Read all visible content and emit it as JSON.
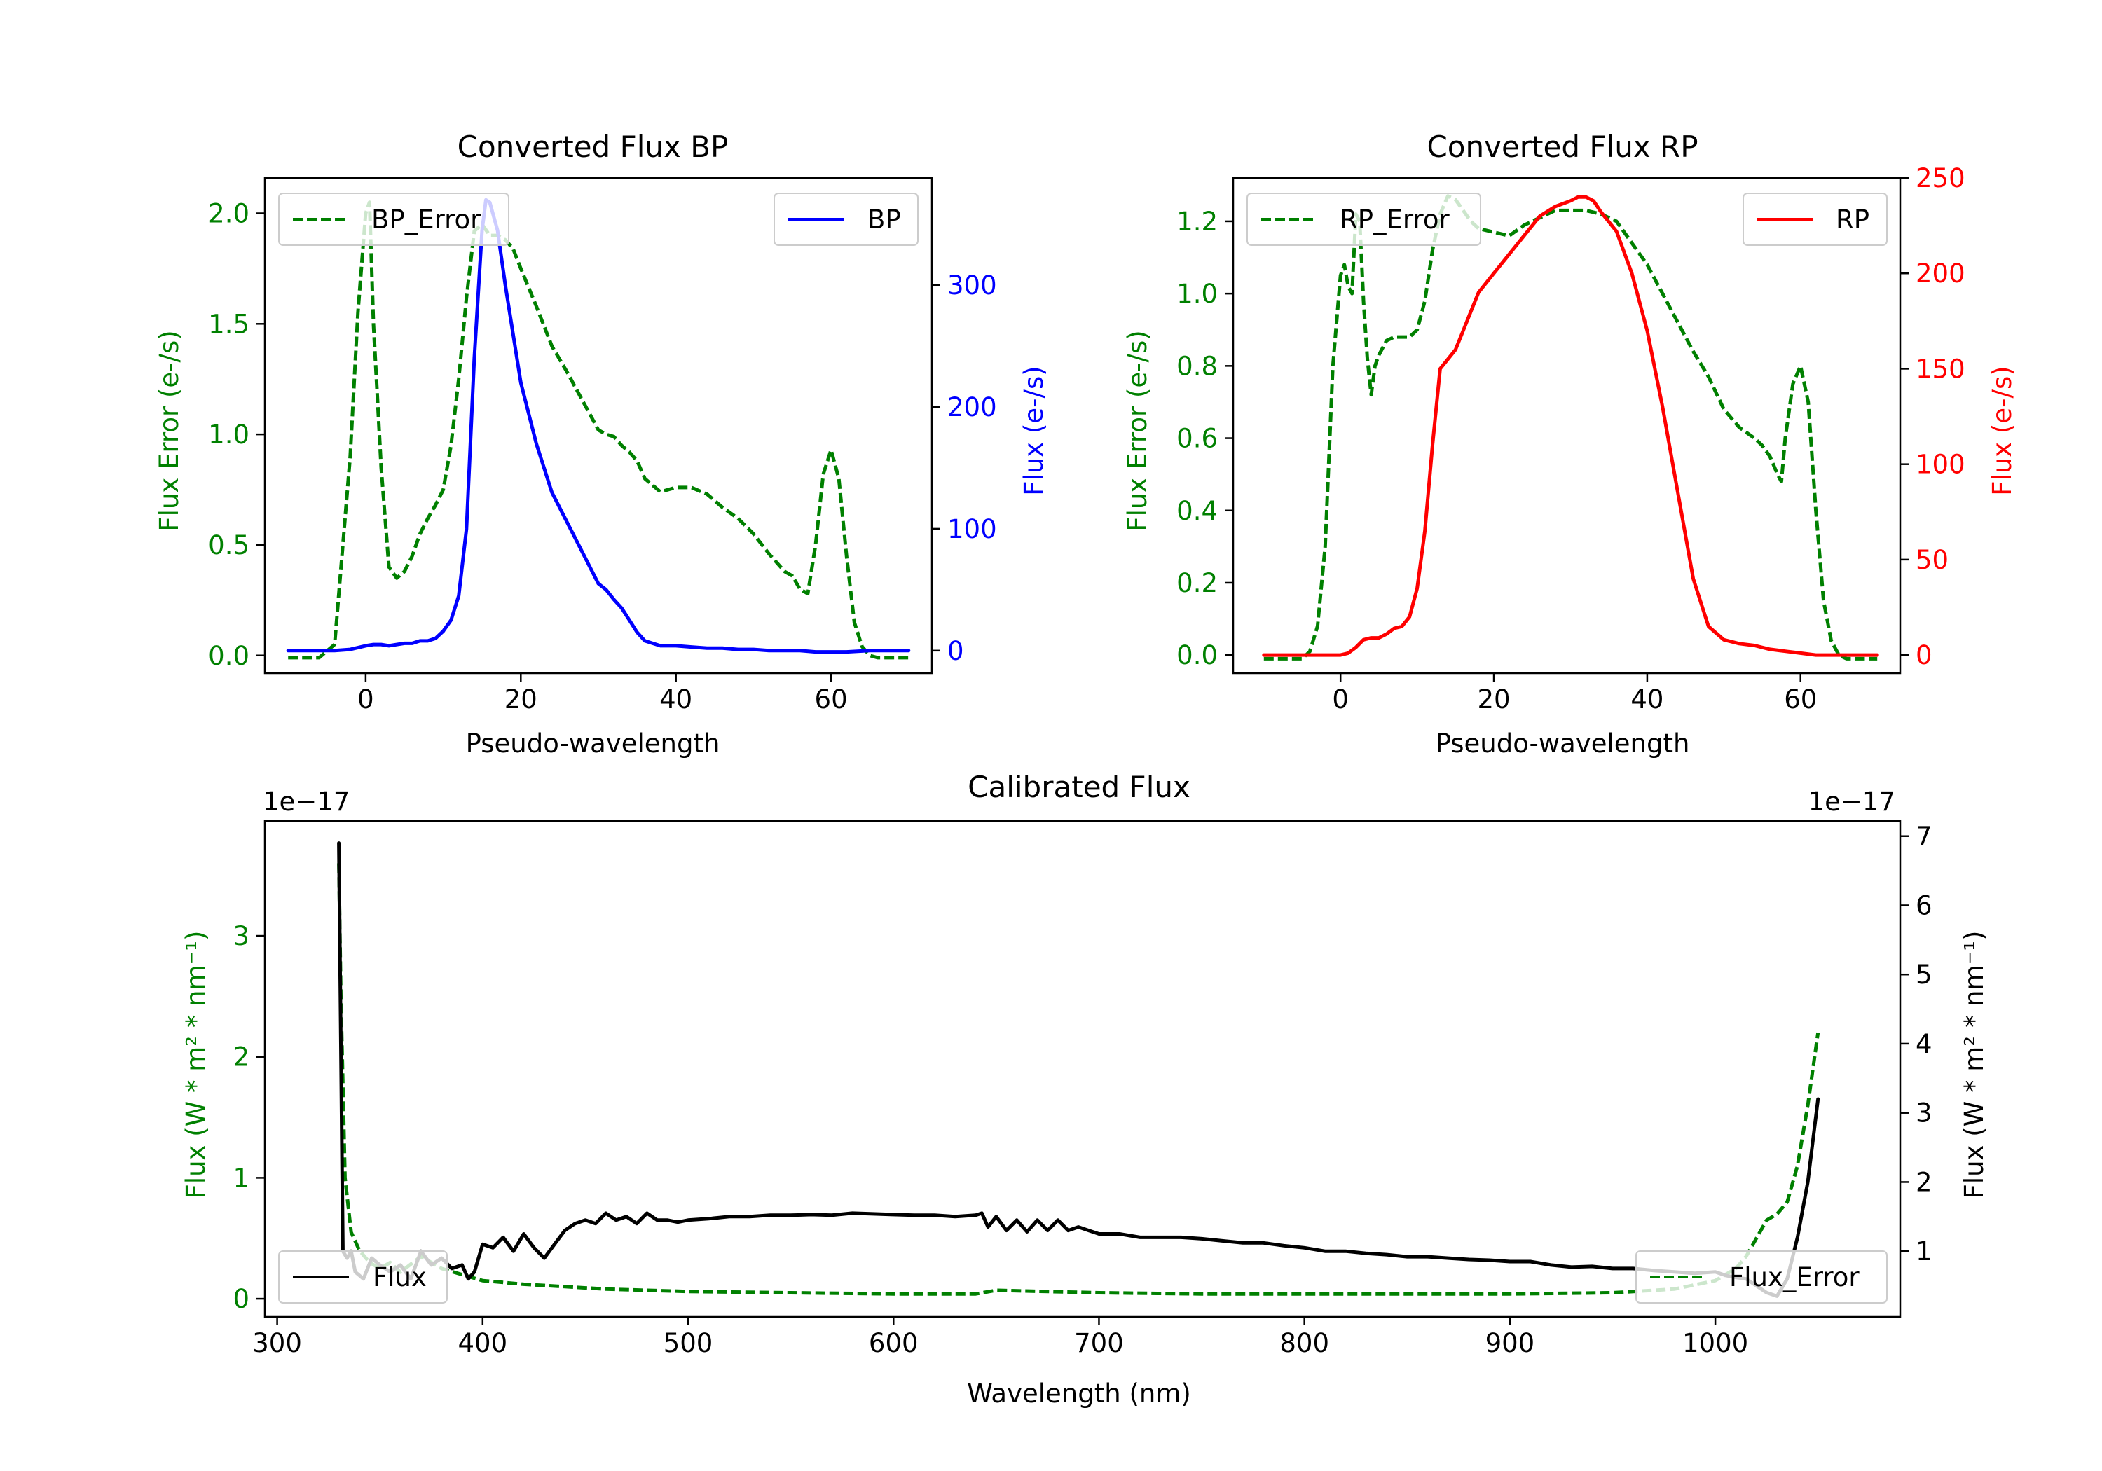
{
  "colors": {
    "bp": "#0000ff",
    "rp": "#ff0000",
    "error": "#008000",
    "flux": "#000000",
    "axis": "#000000",
    "legend_border": "#cccccc"
  },
  "chart_data": [
    {
      "id": "bp",
      "type": "line",
      "title": "Converted Flux BP",
      "xlabel": "Pseudo-wavelength",
      "ylabel_left": "Flux Error (e-/s)",
      "ylabel_right": "Flux (e-/s)",
      "xlim": [
        -13,
        73
      ],
      "ylim_left": [
        -0.08,
        2.16
      ],
      "ylim_right": [
        -18.5,
        388
      ],
      "xticks": [
        0,
        20,
        40,
        60
      ],
      "yticks_left": [
        0.0,
        0.5,
        1.0,
        1.5,
        2.0
      ],
      "yticks_right": [
        0,
        100,
        200,
        300
      ],
      "legend_left": {
        "label": "BP_Error",
        "position": "upper left"
      },
      "legend_right": {
        "label": "BP",
        "position": "upper right"
      },
      "series": [
        {
          "name": "BP_Error",
          "axis": "left",
          "style": "dashed",
          "color_key": "error",
          "x": [
            -10,
            -6,
            -4,
            -2,
            -1,
            0,
            0.5,
            1,
            2,
            3,
            4,
            5,
            6,
            7,
            8,
            9,
            10,
            11,
            12,
            13,
            14,
            15,
            16,
            17,
            18,
            19,
            20,
            22,
            24,
            26,
            28,
            30,
            31,
            32,
            33,
            34,
            35,
            36,
            37,
            38,
            39,
            40,
            42,
            44,
            46,
            48,
            50,
            52,
            54,
            55,
            56,
            57,
            58,
            59,
            60,
            61,
            62,
            63,
            64,
            65,
            66,
            70
          ],
          "y": [
            -0.01,
            -0.01,
            0.05,
            0.9,
            1.55,
            2.0,
            2.05,
            1.5,
            0.85,
            0.4,
            0.35,
            0.38,
            0.45,
            0.55,
            0.62,
            0.68,
            0.75,
            0.95,
            1.25,
            1.62,
            1.92,
            1.95,
            1.9,
            1.9,
            1.88,
            1.84,
            1.75,
            1.58,
            1.4,
            1.28,
            1.15,
            1.02,
            1.0,
            0.99,
            0.95,
            0.92,
            0.88,
            0.8,
            0.77,
            0.74,
            0.75,
            0.76,
            0.76,
            0.73,
            0.67,
            0.62,
            0.55,
            0.46,
            0.38,
            0.36,
            0.3,
            0.28,
            0.5,
            0.82,
            0.93,
            0.8,
            0.45,
            0.15,
            0.04,
            0.0,
            -0.01,
            -0.01
          ]
        },
        {
          "name": "BP",
          "axis": "right",
          "style": "solid",
          "color_key": "bp",
          "x": [
            -10,
            -4,
            -2,
            0,
            1,
            2,
            3,
            4,
            5,
            6,
            7,
            8,
            9,
            10,
            11,
            12,
            13,
            14,
            15,
            15.5,
            16,
            17,
            18,
            20,
            22,
            24,
            26,
            28,
            30,
            31,
            32,
            33,
            34,
            35,
            36,
            37,
            38,
            40,
            42,
            44,
            46,
            48,
            50,
            52,
            54,
            56,
            58,
            60,
            62,
            65,
            70
          ],
          "y": [
            0,
            0,
            1,
            4,
            5,
            5,
            4,
            5,
            6,
            6,
            8,
            8,
            10,
            16,
            25,
            45,
            100,
            240,
            345,
            370,
            368,
            345,
            300,
            220,
            170,
            130,
            105,
            80,
            55,
            50,
            42,
            35,
            25,
            15,
            8,
            6,
            4,
            4,
            3,
            2,
            2,
            1,
            1,
            0,
            0,
            0,
            -1,
            -1,
            -1,
            0,
            0
          ]
        }
      ]
    },
    {
      "id": "rp",
      "type": "line",
      "title": "Converted Flux RP",
      "xlabel": "Pseudo-wavelength",
      "ylabel_left": "Flux Error (e-/s)",
      "ylabel_right": "Flux (e-/s)",
      "xlim": [
        -14,
        73
      ],
      "ylim_left": [
        -0.05,
        1.32
      ],
      "ylim_right": [
        -9.5,
        250
      ],
      "xticks": [
        0,
        20,
        40,
        60
      ],
      "yticks_left": [
        0.0,
        0.2,
        0.4,
        0.6,
        0.8,
        1.0,
        1.2
      ],
      "yticks_right": [
        0,
        50,
        100,
        150,
        200,
        250
      ],
      "legend_left": {
        "label": "RP_Error",
        "position": "upper left"
      },
      "legend_right": {
        "label": "RP",
        "position": "upper right"
      },
      "series": [
        {
          "name": "RP_Error",
          "axis": "left",
          "style": "dashed",
          "color_key": "error",
          "x": [
            -10,
            -5,
            -4,
            -3,
            -2,
            -1,
            0,
            0.5,
            1,
            1.5,
            2,
            2.5,
            3,
            3.5,
            4,
            4.5,
            5,
            6,
            7,
            8,
            9,
            10,
            11,
            12,
            13,
            14,
            15,
            16,
            17,
            18,
            20,
            22,
            24,
            26,
            28,
            30,
            32,
            34,
            36,
            38,
            40,
            42,
            44,
            46,
            48,
            50,
            52,
            54,
            55,
            56,
            57,
            57.5,
            58,
            59,
            60,
            61,
            62,
            63,
            64,
            65,
            66,
            70
          ],
          "y": [
            -0.01,
            -0.01,
            0.01,
            0.08,
            0.3,
            0.8,
            1.05,
            1.08,
            1.02,
            1.0,
            1.22,
            1.2,
            0.98,
            0.82,
            0.72,
            0.8,
            0.83,
            0.87,
            0.88,
            0.88,
            0.88,
            0.9,
            0.98,
            1.12,
            1.22,
            1.27,
            1.26,
            1.23,
            1.2,
            1.18,
            1.17,
            1.16,
            1.19,
            1.21,
            1.23,
            1.23,
            1.23,
            1.22,
            1.2,
            1.14,
            1.08,
            1.0,
            0.92,
            0.84,
            0.77,
            0.68,
            0.63,
            0.6,
            0.58,
            0.55,
            0.5,
            0.48,
            0.6,
            0.75,
            0.8,
            0.7,
            0.4,
            0.15,
            0.04,
            0.0,
            -0.01,
            -0.01
          ]
        },
        {
          "name": "RP",
          "axis": "right",
          "style": "solid",
          "color_key": "rp",
          "x": [
            -10,
            -4,
            -2,
            0,
            1,
            2,
            3,
            4,
            5,
            6,
            7,
            8,
            9,
            10,
            11,
            12,
            13,
            14,
            15,
            16,
            17,
            18,
            20,
            22,
            24,
            26,
            28,
            30,
            31,
            32,
            33,
            34,
            36,
            38,
            40,
            42,
            44,
            46,
            48,
            50,
            52,
            54,
            56,
            58,
            60,
            62,
            64,
            66,
            70
          ],
          "y": [
            0,
            0,
            0,
            0,
            1,
            4,
            8,
            9,
            9,
            11,
            14,
            15,
            20,
            35,
            65,
            110,
            150,
            155,
            160,
            170,
            180,
            190,
            200,
            210,
            220,
            230,
            235,
            238,
            240,
            240,
            238,
            232,
            222,
            200,
            170,
            130,
            85,
            40,
            15,
            8,
            6,
            5,
            3,
            2,
            1,
            0,
            0,
            0,
            0
          ]
        }
      ]
    },
    {
      "id": "calibrated",
      "type": "line",
      "title": "Calibrated Flux",
      "xlabel": "Wavelength (nm)",
      "ylabel_left": "Flux (W * m² * nm⁻¹)",
      "ylabel_right": "Flux (W * m² * nm⁻¹)",
      "offset_left": "1e−17",
      "offset_right": "1e−17",
      "xlim": [
        294,
        1090
      ],
      "ylim_left": [
        -0.15,
        3.95
      ],
      "ylim_right": [
        0.05,
        7.22
      ],
      "xticks": [
        300,
        400,
        500,
        600,
        700,
        800,
        900,
        1000
      ],
      "yticks_left": [
        0,
        1,
        2,
        3
      ],
      "yticks_right": [
        1,
        2,
        3,
        4,
        5,
        6,
        7
      ],
      "legend_left": {
        "label": "Flux",
        "position": "lower left"
      },
      "legend_right": {
        "label": "Flux_Error",
        "position": "lower right"
      },
      "series": [
        {
          "name": "Flux_Error",
          "axis": "left",
          "style": "dashed",
          "color_key": "error",
          "x": [
            330,
            331,
            333,
            336,
            340,
            345,
            350,
            355,
            360,
            370,
            380,
            390,
            400,
            420,
            440,
            460,
            500,
            550,
            600,
            640,
            650,
            700,
            750,
            800,
            850,
            900,
            950,
            980,
            1000,
            1010,
            1015,
            1020,
            1025,
            1030,
            1035,
            1040,
            1045,
            1050
          ],
          "y": [
            3.6,
            2.5,
            1.0,
            0.55,
            0.4,
            0.3,
            0.25,
            0.3,
            0.22,
            0.35,
            0.25,
            0.2,
            0.15,
            0.12,
            0.1,
            0.08,
            0.06,
            0.05,
            0.04,
            0.04,
            0.07,
            0.05,
            0.04,
            0.04,
            0.04,
            0.04,
            0.05,
            0.08,
            0.15,
            0.25,
            0.35,
            0.5,
            0.65,
            0.7,
            0.8,
            1.1,
            1.6,
            2.2
          ]
        },
        {
          "name": "Flux",
          "axis": "right",
          "style": "solid",
          "color_key": "flux",
          "x": [
            330,
            331,
            332,
            334,
            336,
            338,
            342,
            346,
            350,
            355,
            360,
            365,
            370,
            375,
            380,
            385,
            390,
            393,
            396,
            400,
            405,
            410,
            415,
            420,
            425,
            430,
            435,
            440,
            445,
            450,
            455,
            460,
            465,
            470,
            475,
            480,
            485,
            490,
            495,
            500,
            510,
            520,
            530,
            540,
            550,
            560,
            570,
            580,
            590,
            600,
            610,
            620,
            630,
            640,
            643,
            646,
            650,
            655,
            660,
            665,
            670,
            675,
            680,
            685,
            690,
            695,
            700,
            710,
            720,
            730,
            740,
            750,
            760,
            770,
            780,
            790,
            800,
            810,
            820,
            830,
            840,
            850,
            860,
            870,
            880,
            890,
            900,
            910,
            920,
            930,
            940,
            950,
            960,
            970,
            980,
            990,
            1000,
            1005,
            1010,
            1015,
            1020,
            1025,
            1030,
            1035,
            1040,
            1045,
            1050
          ],
          "y": [
            6.9,
            4.0,
            1.0,
            0.9,
            1.0,
            0.7,
            0.6,
            0.9,
            0.8,
            0.7,
            0.8,
            0.6,
            1.0,
            0.8,
            0.9,
            0.75,
            0.8,
            0.6,
            0.7,
            1.1,
            1.05,
            1.2,
            1.0,
            1.25,
            1.05,
            0.9,
            1.1,
            1.3,
            1.4,
            1.45,
            1.4,
            1.55,
            1.45,
            1.5,
            1.4,
            1.55,
            1.45,
            1.45,
            1.42,
            1.45,
            1.47,
            1.5,
            1.5,
            1.52,
            1.52,
            1.53,
            1.52,
            1.55,
            1.54,
            1.53,
            1.52,
            1.52,
            1.5,
            1.52,
            1.55,
            1.35,
            1.5,
            1.3,
            1.45,
            1.28,
            1.45,
            1.3,
            1.45,
            1.3,
            1.35,
            1.3,
            1.25,
            1.25,
            1.2,
            1.2,
            1.2,
            1.18,
            1.15,
            1.12,
            1.12,
            1.08,
            1.05,
            1.0,
            1.0,
            0.97,
            0.95,
            0.92,
            0.92,
            0.9,
            0.88,
            0.87,
            0.85,
            0.85,
            0.8,
            0.77,
            0.78,
            0.75,
            0.75,
            0.72,
            0.7,
            0.68,
            0.7,
            0.65,
            0.62,
            0.6,
            0.5,
            0.4,
            0.35,
            0.6,
            1.2,
            2.0,
            3.2
          ]
        }
      ]
    }
  ]
}
